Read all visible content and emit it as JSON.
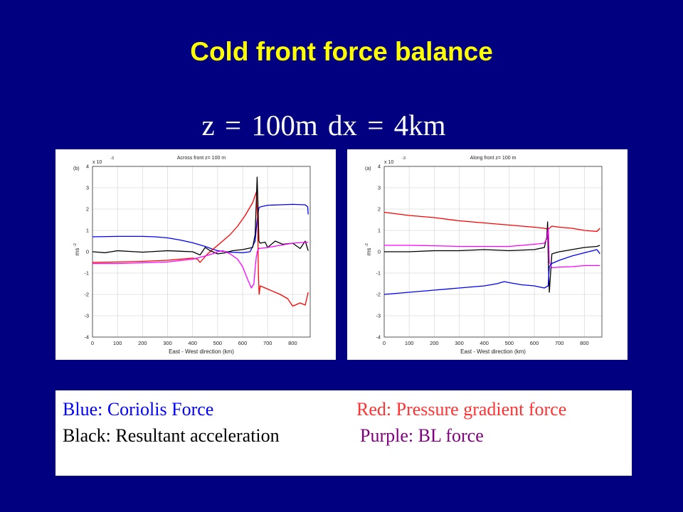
{
  "slide": {
    "title": "Cold front force balance",
    "subtitle": "z = 100m    dx = 4km"
  },
  "legend": {
    "blue": "Blue: Coriolis Force",
    "red": "Red: Pressure gradient force",
    "black": "Black: Resultant acceleration",
    "purple": "Purple: BL force"
  },
  "colors": {
    "background": "#000080",
    "title": "#ffff00",
    "coriolis": "#0000ff",
    "pressure": "#ff0000",
    "resultant": "#000000",
    "bl": "#ff00ff"
  },
  "chart_data": [
    {
      "type": "line",
      "panel_label": "(b)",
      "title": "Across front z= 100 m",
      "xlabel": "East - West direction (km)",
      "ylabel": "ms",
      "ylabel_exp": "-2",
      "multiplier": "x 10",
      "multiplier_exp": "-3",
      "xlim": [
        0,
        870
      ],
      "ylim": [
        -4,
        4
      ],
      "xticks": [
        0,
        100,
        200,
        300,
        400,
        500,
        600,
        700,
        800
      ],
      "yticks": [
        -4,
        -3,
        -2,
        -1,
        0,
        1,
        2,
        3,
        4
      ],
      "grid": true,
      "series": [
        {
          "color": "#0000ff",
          "x": [
            0,
            100,
            200,
            250,
            300,
            350,
            400,
            450,
            480,
            500,
            550,
            600,
            630,
            650,
            658,
            665,
            670,
            700,
            750,
            800,
            850,
            860,
            862
          ],
          "y": [
            0.7,
            0.72,
            0.72,
            0.7,
            0.65,
            0.55,
            0.42,
            0.25,
            0.12,
            0.05,
            -0.02,
            -0.05,
            0,
            0.5,
            1.5,
            2.05,
            2.1,
            2.18,
            2.2,
            2.22,
            2.2,
            2.1,
            1.75
          ]
        },
        {
          "color": "#ff0000",
          "x": [
            0,
            100,
            200,
            300,
            400,
            420,
            430,
            445,
            460,
            480,
            500,
            520,
            550,
            580,
            610,
            640,
            655,
            660,
            663,
            666,
            670,
            680,
            700,
            750,
            780,
            800,
            830,
            850,
            862
          ],
          "y": [
            -0.5,
            -0.48,
            -0.45,
            -0.4,
            -0.3,
            -0.35,
            -0.5,
            -0.3,
            -0.1,
            0.1,
            0.3,
            0.5,
            0.8,
            1.2,
            1.7,
            2.3,
            2.8,
            1.5,
            -1.0,
            -2.0,
            -1.6,
            -1.65,
            -1.75,
            -2.0,
            -2.2,
            -2.55,
            -2.4,
            -2.5,
            -1.9
          ]
        },
        {
          "color": "#000000",
          "x": [
            0,
            50,
            100,
            200,
            300,
            400,
            430,
            450,
            470,
            500,
            530,
            560,
            600,
            640,
            650,
            655,
            658,
            662,
            665,
            670,
            690,
            700,
            730,
            760,
            800,
            830,
            850,
            862
          ],
          "y": [
            0.0,
            -0.05,
            0.05,
            -0.02,
            0.05,
            0.0,
            -0.15,
            0.2,
            0.05,
            -0.1,
            -0.05,
            0.05,
            0.1,
            0.2,
            0.8,
            2.5,
            3.5,
            2.0,
            0.5,
            0.4,
            0.45,
            0.2,
            0.5,
            0.35,
            0.4,
            0.15,
            0.5,
            0.05
          ]
        },
        {
          "color": "#ff00ff",
          "x": [
            0,
            100,
            200,
            300,
            400,
            450,
            480,
            500,
            520,
            550,
            580,
            600,
            620,
            635,
            645,
            650,
            655,
            660,
            665,
            700,
            750,
            800,
            862
          ],
          "y": [
            -0.55,
            -0.55,
            -0.52,
            -0.48,
            -0.35,
            -0.2,
            -0.1,
            0.0,
            0.05,
            -0.1,
            -0.35,
            -0.7,
            -1.3,
            -1.7,
            -1.5,
            -0.8,
            -0.2,
            0.05,
            0.15,
            0.2,
            0.3,
            0.4,
            0.45
          ]
        }
      ]
    },
    {
      "type": "line",
      "panel_label": "(a)",
      "title": "Along front z= 100 m",
      "xlabel": "East - West direction (km)",
      "ylabel": "ms",
      "ylabel_exp": "-2",
      "multiplier": "x 10",
      "multiplier_exp": "-3",
      "xlim": [
        0,
        870
      ],
      "ylim": [
        -4,
        4
      ],
      "xticks": [
        0,
        100,
        200,
        300,
        400,
        500,
        600,
        700,
        800
      ],
      "yticks": [
        -4,
        -3,
        -2,
        -1,
        0,
        1,
        2,
        3,
        4
      ],
      "grid": true,
      "series": [
        {
          "color": "#ff0000",
          "x": [
            0,
            100,
            200,
            300,
            400,
            500,
            600,
            640,
            655,
            670,
            700,
            750,
            800,
            850,
            862
          ],
          "y": [
            1.85,
            1.7,
            1.6,
            1.45,
            1.35,
            1.25,
            1.15,
            1.1,
            1.05,
            1.2,
            1.15,
            1.1,
            1.0,
            0.95,
            1.1
          ]
        },
        {
          "color": "#000000",
          "x": [
            0,
            100,
            200,
            300,
            400,
            500,
            600,
            640,
            650,
            653,
            656,
            660,
            670,
            700,
            750,
            800,
            850,
            862
          ],
          "y": [
            0.0,
            0.0,
            0.05,
            0.05,
            0.1,
            0.05,
            0.1,
            0.2,
            0.7,
            1.4,
            -0.5,
            -1.9,
            -0.1,
            0.0,
            0.1,
            0.2,
            0.25,
            0.3
          ]
        },
        {
          "color": "#ff00ff",
          "x": [
            0,
            100,
            200,
            300,
            400,
            500,
            600,
            640,
            650,
            656,
            660,
            670,
            700,
            750,
            800,
            862
          ],
          "y": [
            0.3,
            0.3,
            0.28,
            0.25,
            0.25,
            0.25,
            0.35,
            0.4,
            0.6,
            1.1,
            -0.5,
            -0.75,
            -0.72,
            -0.7,
            -0.65,
            -0.65
          ]
        },
        {
          "color": "#0000ff",
          "x": [
            0,
            100,
            200,
            300,
            400,
            450,
            480,
            500,
            550,
            600,
            640,
            655,
            660,
            670,
            700,
            750,
            800,
            850,
            862
          ],
          "y": [
            -2.0,
            -1.9,
            -1.8,
            -1.7,
            -1.6,
            -1.5,
            -1.4,
            -1.45,
            -1.55,
            -1.6,
            -1.7,
            -1.6,
            -0.7,
            -0.55,
            -0.4,
            -0.2,
            -0.05,
            0.1,
            -0.1
          ]
        }
      ]
    }
  ]
}
